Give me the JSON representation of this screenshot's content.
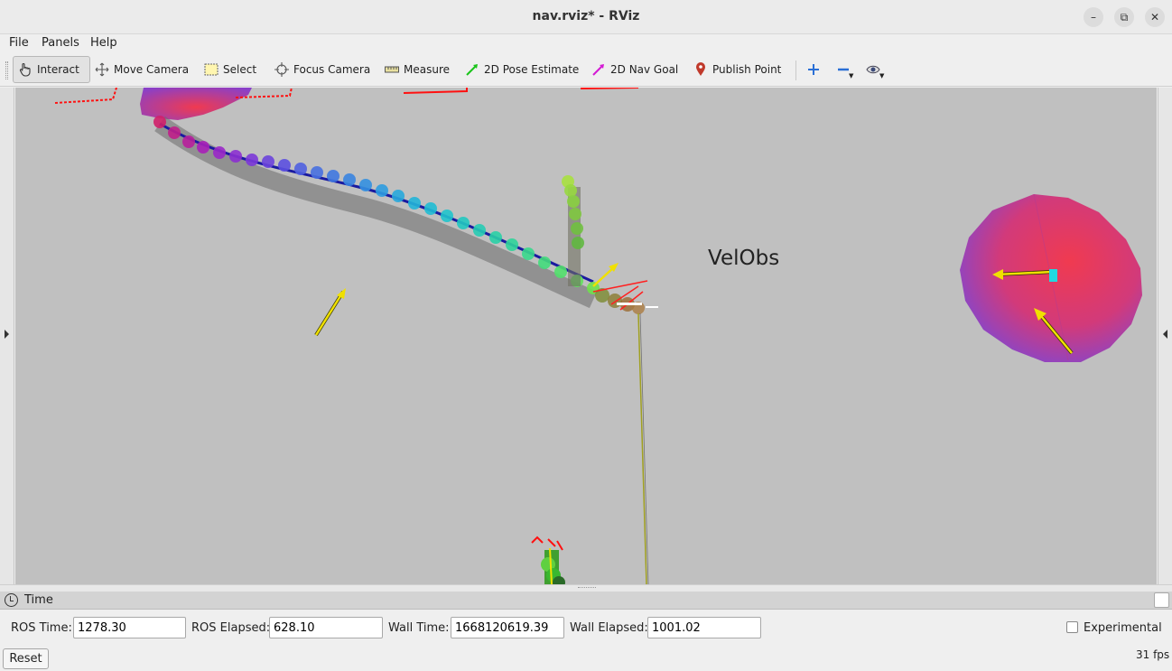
{
  "window": {
    "title": "nav.rviz* - RViz",
    "controls": {
      "minimize": "–",
      "maximize": "⧉",
      "close": "✕"
    }
  },
  "menu": {
    "file": "File",
    "panels": "Panels",
    "help": "Help"
  },
  "toolbar": {
    "interact": "Interact",
    "move_camera": "Move Camera",
    "select": "Select",
    "focus_camera": "Focus Camera",
    "measure": "Measure",
    "pose_estimate": "2D Pose Estimate",
    "nav_goal": "2D Nav Goal",
    "publish_point": "Publish Point"
  },
  "viewport": {
    "overlay_text": "VelObs"
  },
  "time_panel": {
    "title": "Time",
    "ros_time_label": "ROS Time:",
    "ros_time": "1278.30",
    "ros_elapsed_label": "ROS Elapsed:",
    "ros_elapsed": "628.10",
    "wall_time_label": "Wall Time:",
    "wall_time": "1668120619.39",
    "wall_elapsed_label": "Wall Elapsed:",
    "wall_elapsed": "1001.02",
    "experimental_label": "Experimental",
    "reset_label": "Reset",
    "fps": "31 fps"
  },
  "colors": {
    "viewport_bg": "#c0c0c0",
    "arrow": "#f0e000",
    "scan": "#ff0000"
  }
}
